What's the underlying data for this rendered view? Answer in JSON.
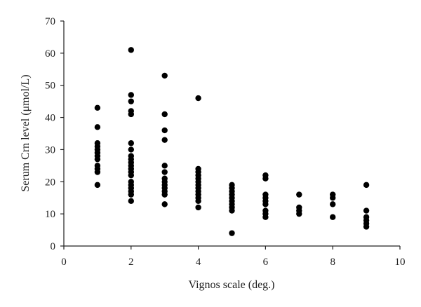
{
  "chart_data": {
    "type": "scatter",
    "title": "",
    "xlabel": "Vignos scale (deg.)",
    "ylabel": "Serum Crn level (μmol/L)",
    "xlim": [
      0,
      10
    ],
    "ylim": [
      0,
      70
    ],
    "xticks": [
      "0",
      "2",
      "4",
      "6",
      "8",
      "10"
    ],
    "yticks": [
      "0",
      "10",
      "20",
      "30",
      "40",
      "50",
      "60",
      "70"
    ],
    "grid": false,
    "legend": "none",
    "marker_color": "#000000",
    "series": [
      {
        "points": [
          [
            1,
            43
          ],
          [
            1,
            37
          ],
          [
            1,
            32
          ],
          [
            1,
            31
          ],
          [
            1,
            30
          ],
          [
            1,
            29
          ],
          [
            1,
            28
          ],
          [
            1,
            27
          ],
          [
            1,
            25
          ],
          [
            1,
            24
          ],
          [
            1,
            23
          ],
          [
            1,
            19
          ],
          [
            2,
            61
          ],
          [
            2,
            47
          ],
          [
            2,
            45
          ],
          [
            2,
            42
          ],
          [
            2,
            41
          ],
          [
            2,
            32
          ],
          [
            2,
            30
          ],
          [
            2,
            28
          ],
          [
            2,
            27
          ],
          [
            2,
            26
          ],
          [
            2,
            25
          ],
          [
            2,
            24
          ],
          [
            2,
            23
          ],
          [
            2,
            22
          ],
          [
            2,
            20
          ],
          [
            2,
            19
          ],
          [
            2,
            18
          ],
          [
            2,
            17
          ],
          [
            2,
            16
          ],
          [
            2,
            14
          ],
          [
            3,
            53
          ],
          [
            3,
            41
          ],
          [
            3,
            36
          ],
          [
            3,
            33
          ],
          [
            3,
            25
          ],
          [
            3,
            23
          ],
          [
            3,
            21
          ],
          [
            3,
            20
          ],
          [
            3,
            19
          ],
          [
            3,
            18
          ],
          [
            3,
            17
          ],
          [
            3,
            16
          ],
          [
            3,
            13
          ],
          [
            4,
            46
          ],
          [
            4,
            24
          ],
          [
            4,
            23
          ],
          [
            4,
            22
          ],
          [
            4,
            21
          ],
          [
            4,
            20
          ],
          [
            4,
            19
          ],
          [
            4,
            18
          ],
          [
            4,
            17
          ],
          [
            4,
            16
          ],
          [
            4,
            15
          ],
          [
            4,
            14
          ],
          [
            4,
            12
          ],
          [
            5,
            19
          ],
          [
            5,
            18
          ],
          [
            5,
            17
          ],
          [
            5,
            16
          ],
          [
            5,
            15
          ],
          [
            5,
            14
          ],
          [
            5,
            13
          ],
          [
            5,
            12
          ],
          [
            5,
            11
          ],
          [
            5,
            4
          ],
          [
            6,
            22
          ],
          [
            6,
            21
          ],
          [
            6,
            16
          ],
          [
            6,
            15
          ],
          [
            6,
            14
          ],
          [
            6,
            13
          ],
          [
            6,
            11
          ],
          [
            6,
            10
          ],
          [
            6,
            9
          ],
          [
            7,
            16
          ],
          [
            7,
            12
          ],
          [
            7,
            11
          ],
          [
            7,
            10
          ],
          [
            8,
            16
          ],
          [
            8,
            15
          ],
          [
            8,
            13
          ],
          [
            8,
            9
          ],
          [
            9,
            19
          ],
          [
            9,
            11
          ],
          [
            9,
            9
          ],
          [
            9,
            8
          ],
          [
            9,
            7
          ],
          [
            9,
            6
          ]
        ]
      }
    ]
  }
}
